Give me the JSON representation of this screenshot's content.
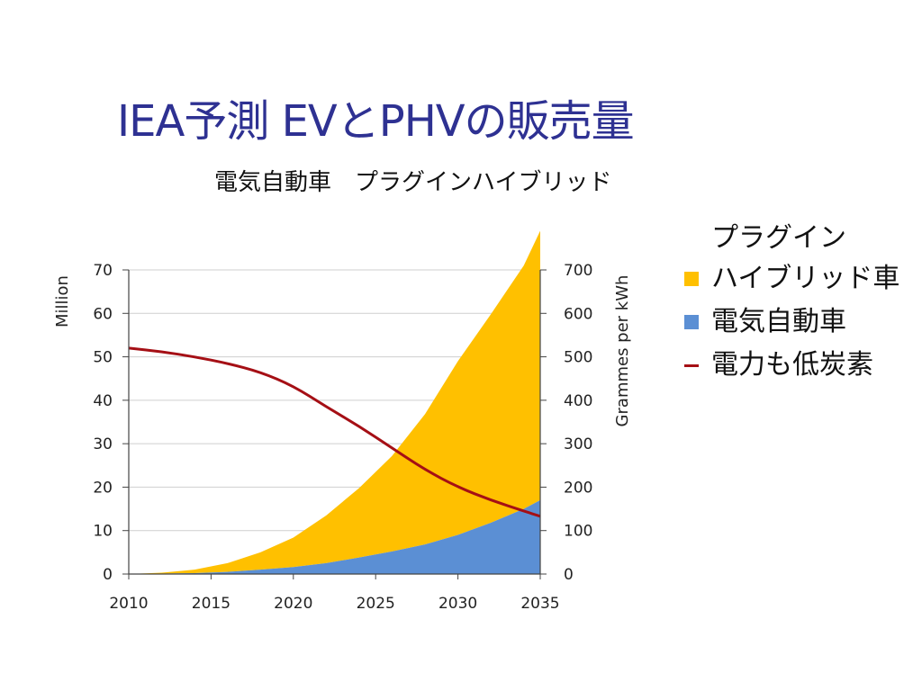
{
  "title": "IEA予測 EVとPHVの販売量",
  "subtitle": "電気自動車　プラグインハイブリッド",
  "legend": {
    "phv_line1": "プラグイン",
    "phv_line2": "ハイブリッド車",
    "ev": "電気自動車",
    "carbon": "電力も低炭素"
  },
  "chart_data": {
    "type": "area",
    "xlabel": "",
    "ylabel_left": "Million",
    "ylabel_right": "Grammes per kWh",
    "xlim": [
      2010,
      2035
    ],
    "ylim_left": [
      0,
      70
    ],
    "ylim_right": [
      0,
      700
    ],
    "x_ticks": [
      "2010",
      "2015",
      "2020",
      "2025",
      "2030",
      "2035"
    ],
    "y_ticks_left": [
      "0",
      "10",
      "20",
      "30",
      "40",
      "50",
      "60",
      "70"
    ],
    "y_ticks_right": [
      "0",
      "100",
      "200",
      "300",
      "400",
      "500",
      "600",
      "700"
    ],
    "grid": true,
    "colors": {
      "phv": "#ffc000",
      "ev": "#5b8fd4",
      "carbon": "#a50f15"
    },
    "x": [
      2010,
      2012,
      2014,
      2016,
      2018,
      2020,
      2022,
      2024,
      2026,
      2028,
      2030,
      2032,
      2034,
      2035
    ],
    "series": [
      {
        "name": "電気自動車",
        "axis": "left",
        "values": [
          0,
          0.1,
          0.2,
          0.5,
          1.0,
          1.6,
          2.5,
          3.8,
          5.2,
          6.8,
          9.0,
          11.8,
          15.0,
          17.0
        ]
      },
      {
        "name": "プラグインハイブリッド車",
        "axis": "left",
        "stacked": true,
        "values": [
          0,
          0.2,
          0.8,
          2.0,
          4.0,
          6.8,
          11.0,
          16.0,
          22.0,
          30.0,
          40.0,
          48.0,
          56.0,
          62.0
        ]
      },
      {
        "name": "電力も低炭素",
        "axis": "right",
        "type": "line",
        "values": [
          520,
          512,
          500,
          485,
          465,
          433,
          385,
          340,
          290,
          240,
          200,
          170,
          145,
          133
        ]
      }
    ]
  }
}
